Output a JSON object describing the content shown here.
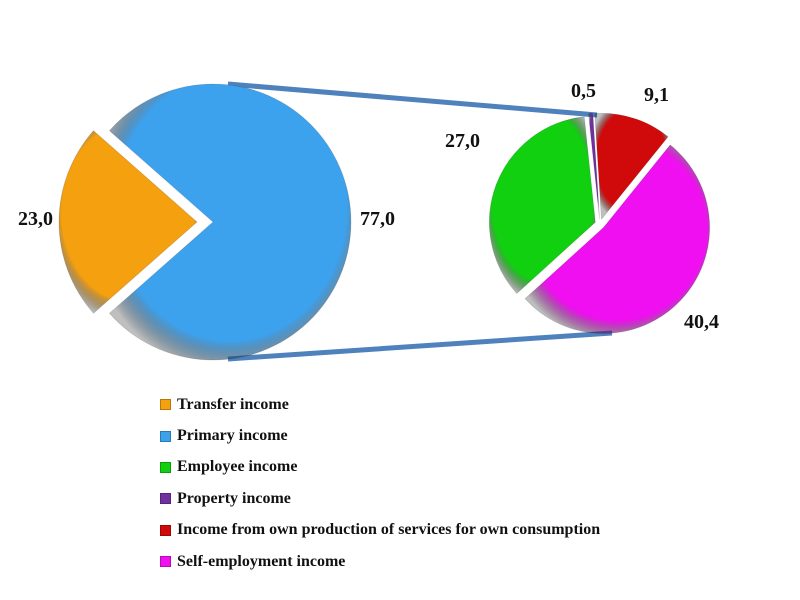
{
  "chart_data": {
    "type": "pie-of-pie",
    "main_pie": {
      "slices": [
        {
          "name": "Transfer income",
          "value": 23.0,
          "label": "23,0",
          "color": "#f5a00f",
          "exploded": true
        },
        {
          "name": "Primary income",
          "value": 77.0,
          "label": "77,0",
          "color": "#3da2ee"
        }
      ]
    },
    "secondary_pie": {
      "breakdown_of": "Primary income",
      "slices": [
        {
          "name": "Property income",
          "value": 0.5,
          "label": "0,5",
          "color": "#7030a0"
        },
        {
          "name": "Income from own production of services for own consumption",
          "value": 9.1,
          "label": "9,1",
          "color": "#d00a0a"
        },
        {
          "name": "Self-employment income",
          "value": 40.4,
          "label": "40,4",
          "color": "#f00ff0"
        },
        {
          "name": "Employee income",
          "value": 27.0,
          "label": "27,0",
          "color": "#10d010"
        }
      ]
    },
    "legend": {
      "placement": "bottom",
      "entries": [
        {
          "label": "Transfer income",
          "color": "#f5a00f"
        },
        {
          "label": "Primary income",
          "color": "#3da2ee"
        },
        {
          "label": "Employee income",
          "color": "#10d010"
        },
        {
          "label": "Property income",
          "color": "#7030a0"
        },
        {
          "label": "Income from own production of services for own consumption",
          "color": "#d00a0a"
        },
        {
          "label": "Self-employment income",
          "color": "#f00ff0"
        }
      ]
    },
    "connector_color": "#4f81bd"
  }
}
